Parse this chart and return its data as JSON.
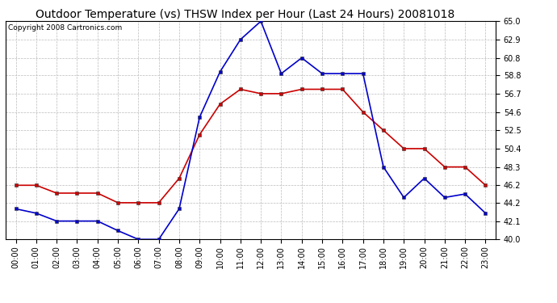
{
  "title": "Outdoor Temperature (vs) THSW Index per Hour (Last 24 Hours) 20081018",
  "copyright": "Copyright 2008 Cartronics.com",
  "hours": [
    "00:00",
    "01:00",
    "02:00",
    "03:00",
    "04:00",
    "05:00",
    "06:00",
    "07:00",
    "08:00",
    "09:00",
    "10:00",
    "11:00",
    "12:00",
    "13:00",
    "14:00",
    "15:00",
    "16:00",
    "17:00",
    "18:00",
    "19:00",
    "20:00",
    "21:00",
    "22:00",
    "23:00"
  ],
  "temp_red": [
    46.2,
    46.2,
    45.3,
    45.3,
    45.3,
    44.2,
    44.2,
    44.2,
    47.0,
    52.0,
    55.5,
    57.2,
    56.7,
    56.7,
    57.2,
    57.2,
    57.2,
    54.6,
    52.5,
    50.4,
    50.4,
    48.3,
    48.3,
    46.2
  ],
  "thsw_blue": [
    43.5,
    43.0,
    42.1,
    42.1,
    42.1,
    41.0,
    40.0,
    40.0,
    43.5,
    54.0,
    59.2,
    62.9,
    65.0,
    59.0,
    60.8,
    59.0,
    59.0,
    59.0,
    48.3,
    44.8,
    47.0,
    44.8,
    45.2,
    43.0
  ],
  "ylim": [
    40.0,
    65.0
  ],
  "yticks": [
    40.0,
    42.1,
    44.2,
    46.2,
    48.3,
    50.4,
    52.5,
    54.6,
    56.7,
    58.8,
    60.8,
    62.9,
    65.0
  ],
  "bg_color": "#ffffff",
  "plot_bg_color": "#ffffff",
  "grid_color": "#bbbbbb",
  "red_color": "#cc0000",
  "blue_color": "#0000cc",
  "title_fontsize": 10,
  "copyright_fontsize": 6.5,
  "tick_fontsize": 7
}
